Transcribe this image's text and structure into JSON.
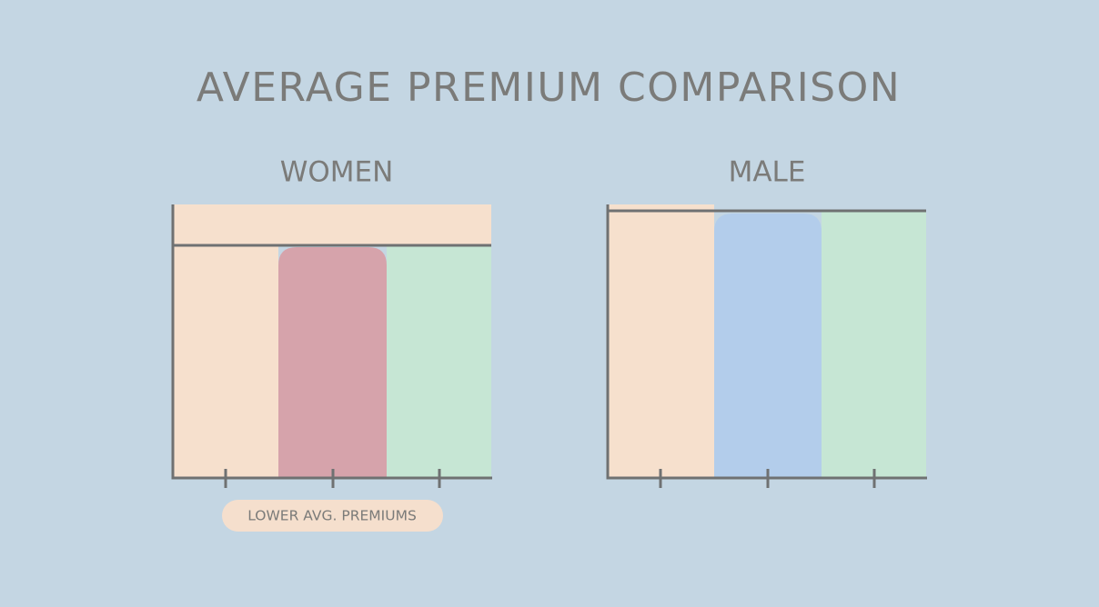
{
  "title": "AVERAGE PREMIUM COMPARISON",
  "panels": [
    {
      "label": "WOMEN",
      "badge": "LOWER AVG. PREMIUMS"
    },
    {
      "label": "MALE"
    }
  ]
}
